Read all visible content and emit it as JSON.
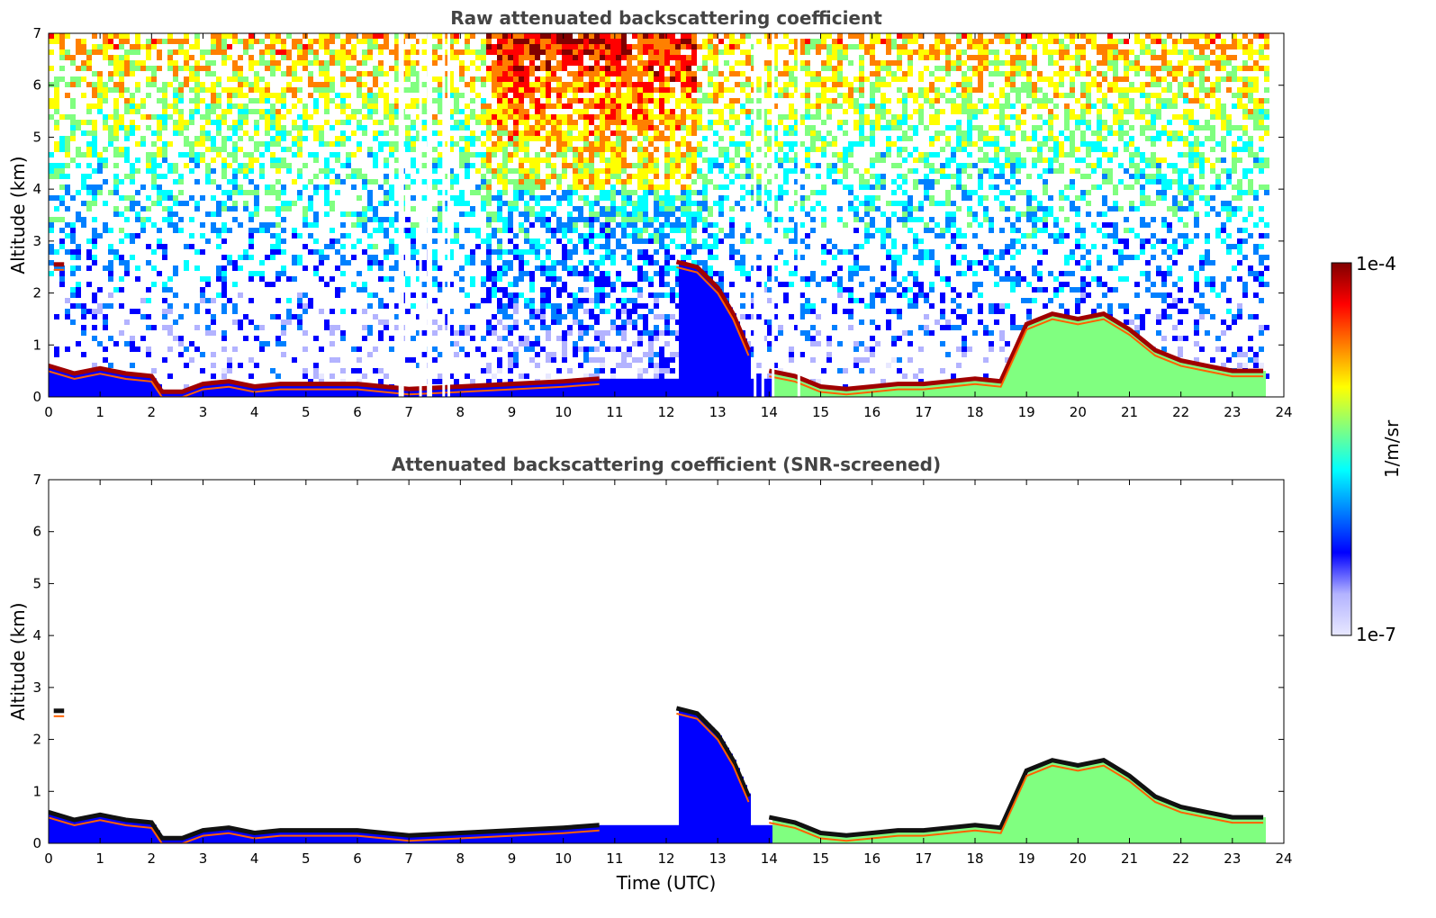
{
  "chart_data": [
    {
      "type": "heatmap",
      "title": "Raw attenuated backscattering coefficient",
      "xlabel": "",
      "ylabel": "Altitude (km)",
      "xlim": [
        0,
        24
      ],
      "ylim": [
        0,
        7
      ],
      "xticks": [
        "0",
        "1",
        "2",
        "3",
        "4",
        "5",
        "6",
        "7",
        "8",
        "9",
        "10",
        "11",
        "12",
        "13",
        "14",
        "15",
        "16",
        "17",
        "18",
        "19",
        "20",
        "21",
        "22",
        "23",
        "24"
      ],
      "yticks": [
        "0",
        "1",
        "2",
        "3",
        "4",
        "5",
        "6",
        "7"
      ],
      "noise": "high",
      "data_end_hour": 23.65,
      "gaps_hours": [
        6.8,
        6.85,
        7.2,
        7.35,
        7.4,
        7.65,
        7.75,
        13.7,
        13.85,
        14.05,
        14.55
      ],
      "layers": [
        {
          "name": "boundary layer top",
          "x": [
            0,
            0.5,
            1,
            1.5,
            2,
            2.2,
            2.6,
            3,
            3.5,
            4,
            4.5,
            5,
            6,
            7,
            8,
            9,
            10,
            10.7
          ],
          "y": [
            0.6,
            0.45,
            0.55,
            0.45,
            0.4,
            0.1,
            0.1,
            0.25,
            0.3,
            0.2,
            0.25,
            0.25,
            0.25,
            0.15,
            0.2,
            0.25,
            0.3,
            0.35
          ]
        },
        {
          "name": "descending layer",
          "x": [
            12.2,
            12.6,
            13.0,
            13.3,
            13.6
          ],
          "y": [
            2.6,
            2.5,
            2.1,
            1.6,
            0.9
          ]
        },
        {
          "name": "afternoon boundary layer",
          "x": [
            14.0,
            14.5,
            15.0,
            15.5,
            16.0,
            16.5,
            17.0,
            17.5,
            18.0,
            18.5,
            19.0,
            19.5,
            20.0,
            20.5,
            21.0,
            21.5,
            22.0,
            22.5,
            23.0,
            23.6
          ],
          "y": [
            0.5,
            0.4,
            0.2,
            0.15,
            0.2,
            0.25,
            0.25,
            0.3,
            0.35,
            0.3,
            1.4,
            1.6,
            1.5,
            1.6,
            1.3,
            0.9,
            0.7,
            0.6,
            0.5,
            0.5
          ]
        },
        {
          "name": "elevated aerosol",
          "x": [
            0.1,
            0.3
          ],
          "y": [
            2.55,
            2.55
          ]
        }
      ]
    },
    {
      "type": "heatmap",
      "title": "Attenuated backscattering coefficient (SNR-screened)",
      "xlabel": "Time (UTC)",
      "ylabel": "Altitude (km)",
      "xlim": [
        0,
        24
      ],
      "ylim": [
        0,
        7
      ],
      "xticks": [
        "0",
        "1",
        "2",
        "3",
        "4",
        "5",
        "6",
        "7",
        "8",
        "9",
        "10",
        "11",
        "12",
        "13",
        "14",
        "15",
        "16",
        "17",
        "18",
        "19",
        "20",
        "21",
        "22",
        "23",
        "24"
      ],
      "yticks": [
        "0",
        "1",
        "2",
        "3",
        "4",
        "5",
        "6",
        "7"
      ],
      "noise": "screened",
      "data_end_hour": 23.65,
      "gaps_hours": [],
      "layers": [
        {
          "name": "boundary layer top",
          "x": [
            0,
            0.5,
            1,
            1.5,
            2,
            2.2,
            2.6,
            3,
            3.5,
            4,
            4.5,
            5,
            6,
            7,
            8,
            9,
            10,
            10.7
          ],
          "y": [
            0.6,
            0.45,
            0.55,
            0.45,
            0.4,
            0.1,
            0.1,
            0.25,
            0.3,
            0.2,
            0.25,
            0.25,
            0.25,
            0.15,
            0.2,
            0.25,
            0.3,
            0.35
          ]
        },
        {
          "name": "descending layer",
          "x": [
            12.2,
            12.6,
            13.0,
            13.3,
            13.6
          ],
          "y": [
            2.6,
            2.5,
            2.1,
            1.6,
            0.9
          ]
        },
        {
          "name": "afternoon boundary layer",
          "x": [
            14.0,
            14.5,
            15.0,
            15.5,
            16.0,
            16.5,
            17.0,
            17.5,
            18.0,
            18.5,
            19.0,
            19.5,
            20.0,
            20.5,
            21.0,
            21.5,
            22.0,
            22.5,
            23.0,
            23.6
          ],
          "y": [
            0.5,
            0.4,
            0.2,
            0.15,
            0.2,
            0.25,
            0.25,
            0.3,
            0.35,
            0.3,
            1.4,
            1.6,
            1.5,
            1.6,
            1.3,
            0.9,
            0.7,
            0.6,
            0.5,
            0.5
          ]
        },
        {
          "name": "elevated aerosol",
          "x": [
            0.1,
            0.3
          ],
          "y": [
            2.55,
            2.55
          ]
        }
      ]
    }
  ],
  "colorbar": {
    "label": "1/m/sr",
    "max_label": "1e-4",
    "min_label": "1e-7",
    "colormap": "jet",
    "colors": [
      "#e8e8ff",
      "#b3b3ff",
      "#0000ff",
      "#0080ff",
      "#00ffff",
      "#80ff80",
      "#ffff00",
      "#ff8000",
      "#ff0000",
      "#800000"
    ]
  }
}
